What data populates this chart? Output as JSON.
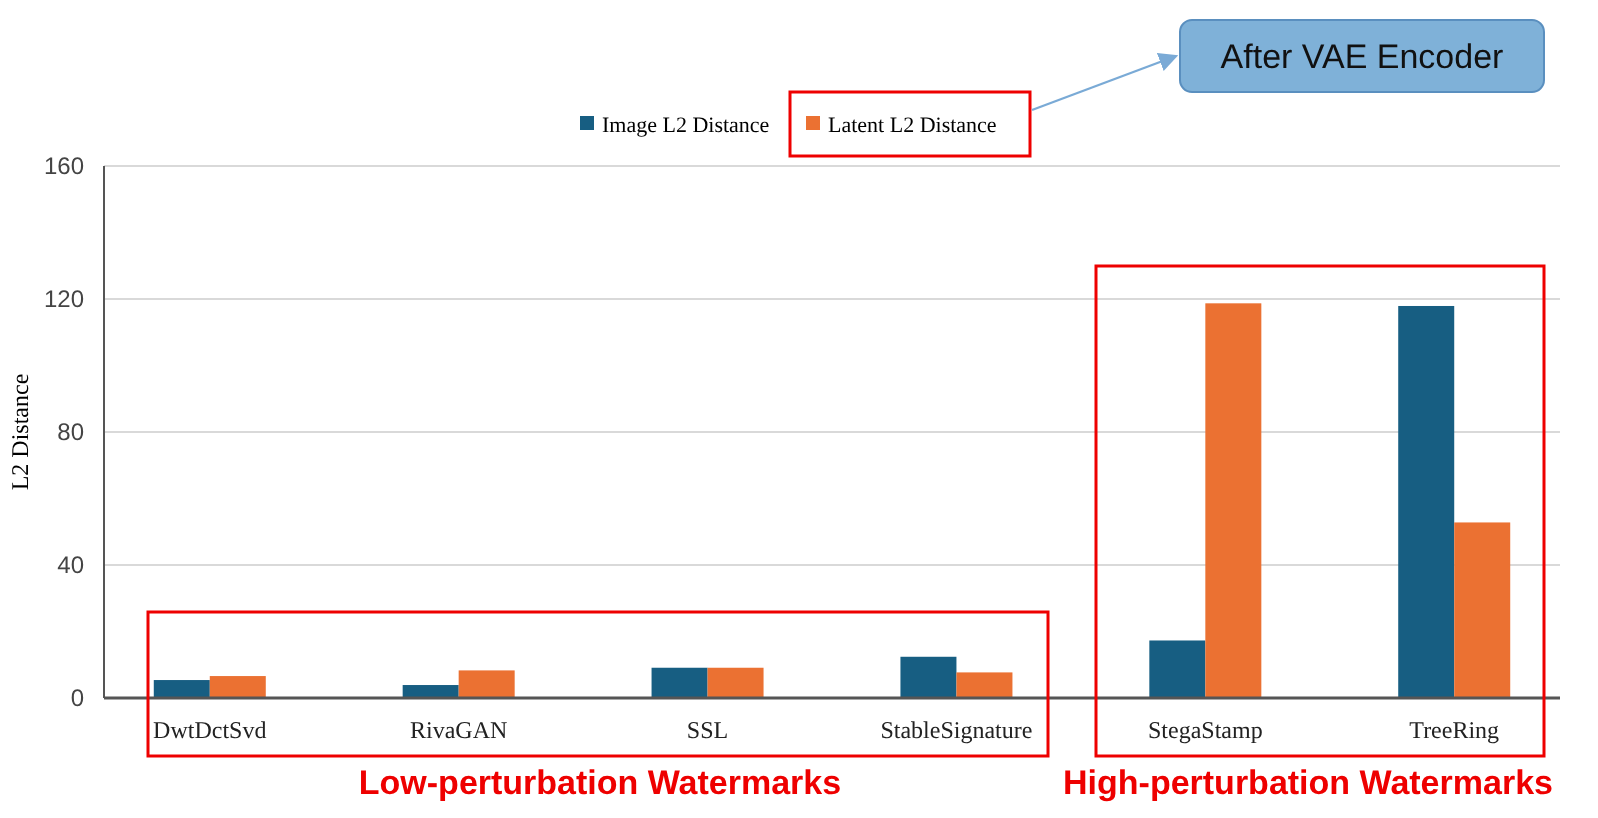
{
  "chart_data": {
    "type": "bar",
    "ylabel": "L2 Distance",
    "categories": [
      "DwtDctSvd",
      "RivaGAN",
      "SSL",
      "StableSignature",
      "StegaStamp",
      "TreeRing"
    ],
    "series": [
      {
        "name": "Image L2 Distance",
        "color": "#175e82",
        "values": [
          5.4,
          3.9,
          9.1,
          12.4,
          17.3,
          117.9
        ]
      },
      {
        "name": "Latent L2 Distance",
        "color": "#eb7132",
        "values": [
          6.6,
          8.3,
          9.1,
          7.7,
          118.7,
          52.8
        ]
      }
    ],
    "ylim": [
      0,
      160
    ],
    "yticks": [
      0,
      40,
      80,
      120,
      160
    ],
    "grid": "y",
    "legend": "top",
    "annotations": [
      "After VAE Encoder",
      "Low-perturbation Watermarks",
      "High-perturbation Watermarks"
    ]
  }
}
